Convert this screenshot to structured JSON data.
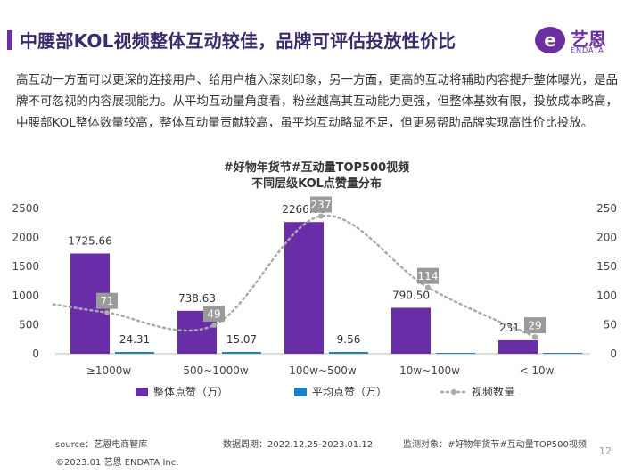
{
  "header": {
    "title": "中腰部KOL视频整体互动较佳，品牌可评估投放性价比"
  },
  "logo": {
    "mark": "e",
    "cn": "艺恩",
    "en": "ENDATA"
  },
  "paragraph": "高互动一方面可以更深的连接用户、给用户植入深刻印象，另一方面，更高的互动将辅助内容提升整体曝光，是品牌不可忽视的内容展现能力。从平均互动量角度看，粉丝越高其互动能力更强，但整体基数有限，投放成本略高，中腰部KOL整体数量较高，整体互动量贡献较高，虽平均互动略显不足，但更易帮助品牌实现高性价比投放。",
  "chart_data": {
    "type": "bar",
    "title": "#好物年货节#互动量TOP500视频",
    "subtitle": "不同层级KOL点赞量分布",
    "categories": [
      "≥1000w",
      "500~1000w",
      "100w~500w",
      "10w~100w",
      "< 10w"
    ],
    "series": [
      {
        "name": "整体点赞（万）",
        "type": "bar",
        "axis": "left",
        "color": "#6a2da8",
        "values": [
          1725.66,
          738.63,
          2266.86,
          790.5,
          231.17
        ],
        "labels": [
          "1725.66",
          "738.63",
          "2266.86",
          "790.50",
          "231.17"
        ]
      },
      {
        "name": "平均点赞（万）",
        "type": "bar",
        "axis": "left",
        "color": "#1f7fc8",
        "values": [
          24.31,
          15.07,
          9.56,
          0,
          0
        ],
        "labels": [
          "24.31",
          "15.07",
          "9.56",
          "",
          ""
        ]
      },
      {
        "name": "视频数量",
        "type": "line",
        "axis": "right",
        "color": "#aaaaaa",
        "values": [
          71,
          49,
          237,
          114,
          29
        ],
        "labels": [
          "71",
          "49",
          "237",
          "114",
          "29"
        ]
      }
    ],
    "y_left": {
      "min": 0,
      "max": 2500,
      "ticks": [
        "0",
        "500",
        "1000",
        "1500",
        "2000",
        "2500"
      ]
    },
    "y_right": {
      "min": 0,
      "max": 250,
      "ticks": [
        "0",
        "50",
        "100",
        "150",
        "200",
        "250"
      ]
    },
    "legend_position": "bottom",
    "grid": false
  },
  "footer": {
    "source": "source：艺恩电商智库",
    "period": "数据周期：2022.12.25-2023.01.12",
    "target": "监测对象：#好物年货节#互动量TOP500视频",
    "copyright": "©2023.01 艺恩 ENDATA Inc.",
    "page": "12"
  }
}
